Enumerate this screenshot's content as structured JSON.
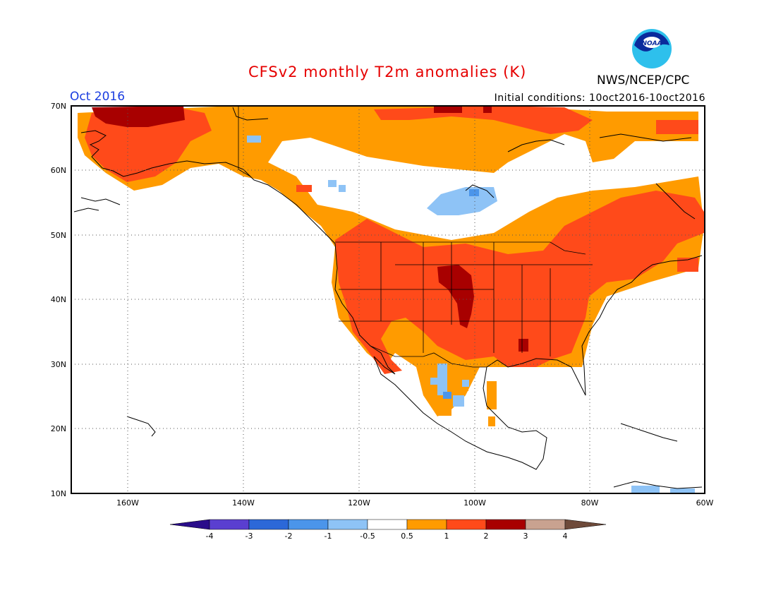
{
  "header": {
    "title": "CFSv2 monthly T2m anomalies (K)",
    "month": "Oct 2016",
    "initial_conditions": "Initial conditions: 10oct2016-10oct2016",
    "agency": "NWS/NCEP/CPC",
    "logo_text": "NOAA"
  },
  "map": {
    "region": "North America",
    "lat_labels": [
      "70N",
      "60N",
      "50N",
      "40N",
      "30N",
      "20N",
      "10N"
    ],
    "lon_labels": [
      "160W",
      "140W",
      "120W",
      "100W",
      "80W",
      "60W"
    ],
    "grid": "dotted"
  },
  "colorbar": {
    "labels": [
      "-4",
      "-3",
      "-2",
      "-1",
      "-0.5",
      "0.5",
      "1",
      "2",
      "3",
      "4"
    ],
    "colors": [
      "#2a0d8a",
      "#5a3fd0",
      "#2c68d8",
      "#4b95ea",
      "#8ec3f6",
      "#ffffff",
      "#ff9b00",
      "#ff4a1a",
      "#a80000",
      "#c9a290",
      "#6e4a3a"
    ]
  }
}
